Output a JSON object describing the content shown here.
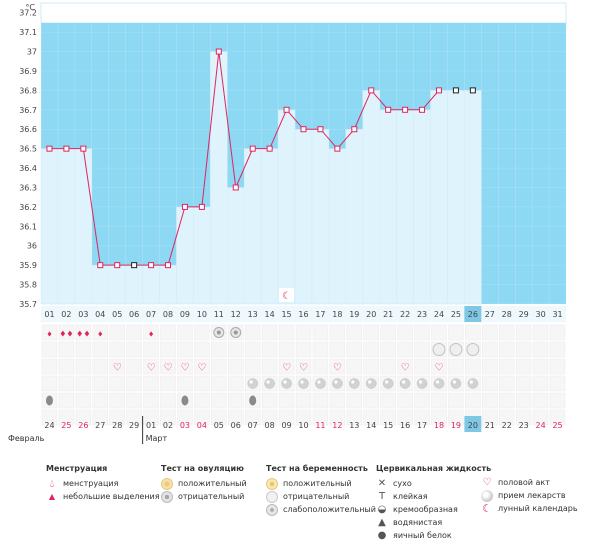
{
  "chart_data": {
    "type": "line",
    "ylabel": "°C",
    "ylim": [
      35.7,
      37.25
    ],
    "yticks": [
      "35.7",
      "35.8",
      "35.9",
      "36",
      "36.1",
      "36.2",
      "36.3",
      "36.4",
      "36.5",
      "36.6",
      "36.7",
      "36.8",
      "36.9",
      "37",
      "37.1",
      "37.2"
    ],
    "days_top": [
      "01",
      "02",
      "03",
      "04",
      "05",
      "06",
      "07",
      "08",
      "09",
      "10",
      "11",
      "12",
      "13",
      "14",
      "15",
      "16",
      "17",
      "18",
      "19",
      "20",
      "21",
      "22",
      "23",
      "24",
      "25",
      "26",
      "27",
      "28",
      "29",
      "30",
      "31"
    ],
    "dates_bottom": [
      "24",
      "25",
      "26",
      "27",
      "28",
      "29",
      "01",
      "02",
      "03",
      "04",
      "05",
      "06",
      "07",
      "08",
      "09",
      "10",
      "11",
      "12",
      "13",
      "14",
      "15",
      "16",
      "17",
      "18",
      "19",
      "20",
      "21",
      "22",
      "23",
      "24",
      "25"
    ],
    "red_dates": [
      1,
      2,
      8,
      9,
      16,
      17,
      23,
      24,
      29,
      30
    ],
    "highlight_day": 26,
    "month_labels": [
      "Февраль",
      "Март"
    ],
    "temperatures": [
      36.5,
      36.5,
      36.5,
      35.9,
      35.9,
      35.9,
      35.9,
      35.9,
      36.2,
      36.2,
      37.0,
      36.3,
      36.5,
      36.5,
      36.7,
      36.6,
      36.6,
      36.5,
      36.6,
      36.8,
      36.7,
      36.7,
      36.7,
      36.8,
      36.8,
      36.8
    ],
    "excluded_days": [
      6,
      25,
      26
    ],
    "grid": true,
    "colors": {
      "above": "#8dd8f3",
      "below": "#dff3fd",
      "line": "#e0245e",
      "highlight": "#7ec8e6",
      "header": "#eef8fd"
    }
  },
  "symbol_rows": {
    "menstruation": {
      "2": "heavy",
      "1": "light",
      "3": "heavy",
      "4": "light",
      "7": "light"
    },
    "ovulation_test": {
      "11": "neg",
      "12": "neg"
    },
    "pregnancy_test": {
      "24": "neg",
      "25": "neg",
      "26": "neg"
    },
    "intercourse": [
      5,
      7,
      8,
      9,
      10,
      15,
      16,
      18,
      22,
      24
    ],
    "medication": [
      13,
      14,
      15,
      16,
      17,
      18,
      19,
      20,
      21,
      22,
      23,
      24,
      25,
      26
    ],
    "cervical_fluid": {
      "1": "eggwhite",
      "9": "eggwhite",
      "13": "eggwhite"
    },
    "moon_day": 15
  },
  "legend": {
    "menstruation": {
      "title": "Менструация",
      "items": [
        "менструация",
        "небольшие выделения"
      ]
    },
    "ovulation": {
      "title": "Тест на овуляцию",
      "items": [
        "положительный",
        "отрицательный"
      ]
    },
    "pregnancy": {
      "title": "Тест на беременность",
      "items": [
        "положительный",
        "отрицательный",
        "слабоположительный"
      ]
    },
    "cervical": {
      "title": "Цервикальная жидкость",
      "items": [
        "сухо",
        "клейкая",
        "кремообразная",
        "водянистая",
        "яичный белок"
      ]
    },
    "other": {
      "items": [
        "половой акт",
        "прием лекарств",
        "лунный календарь"
      ]
    }
  },
  "icons": {
    "menstruation_heavy": "blood-drops-icon",
    "menstruation_light": "small-drop-icon",
    "heart": "heart-icon",
    "pill": "pill-icon",
    "moon": "moon-icon"
  }
}
